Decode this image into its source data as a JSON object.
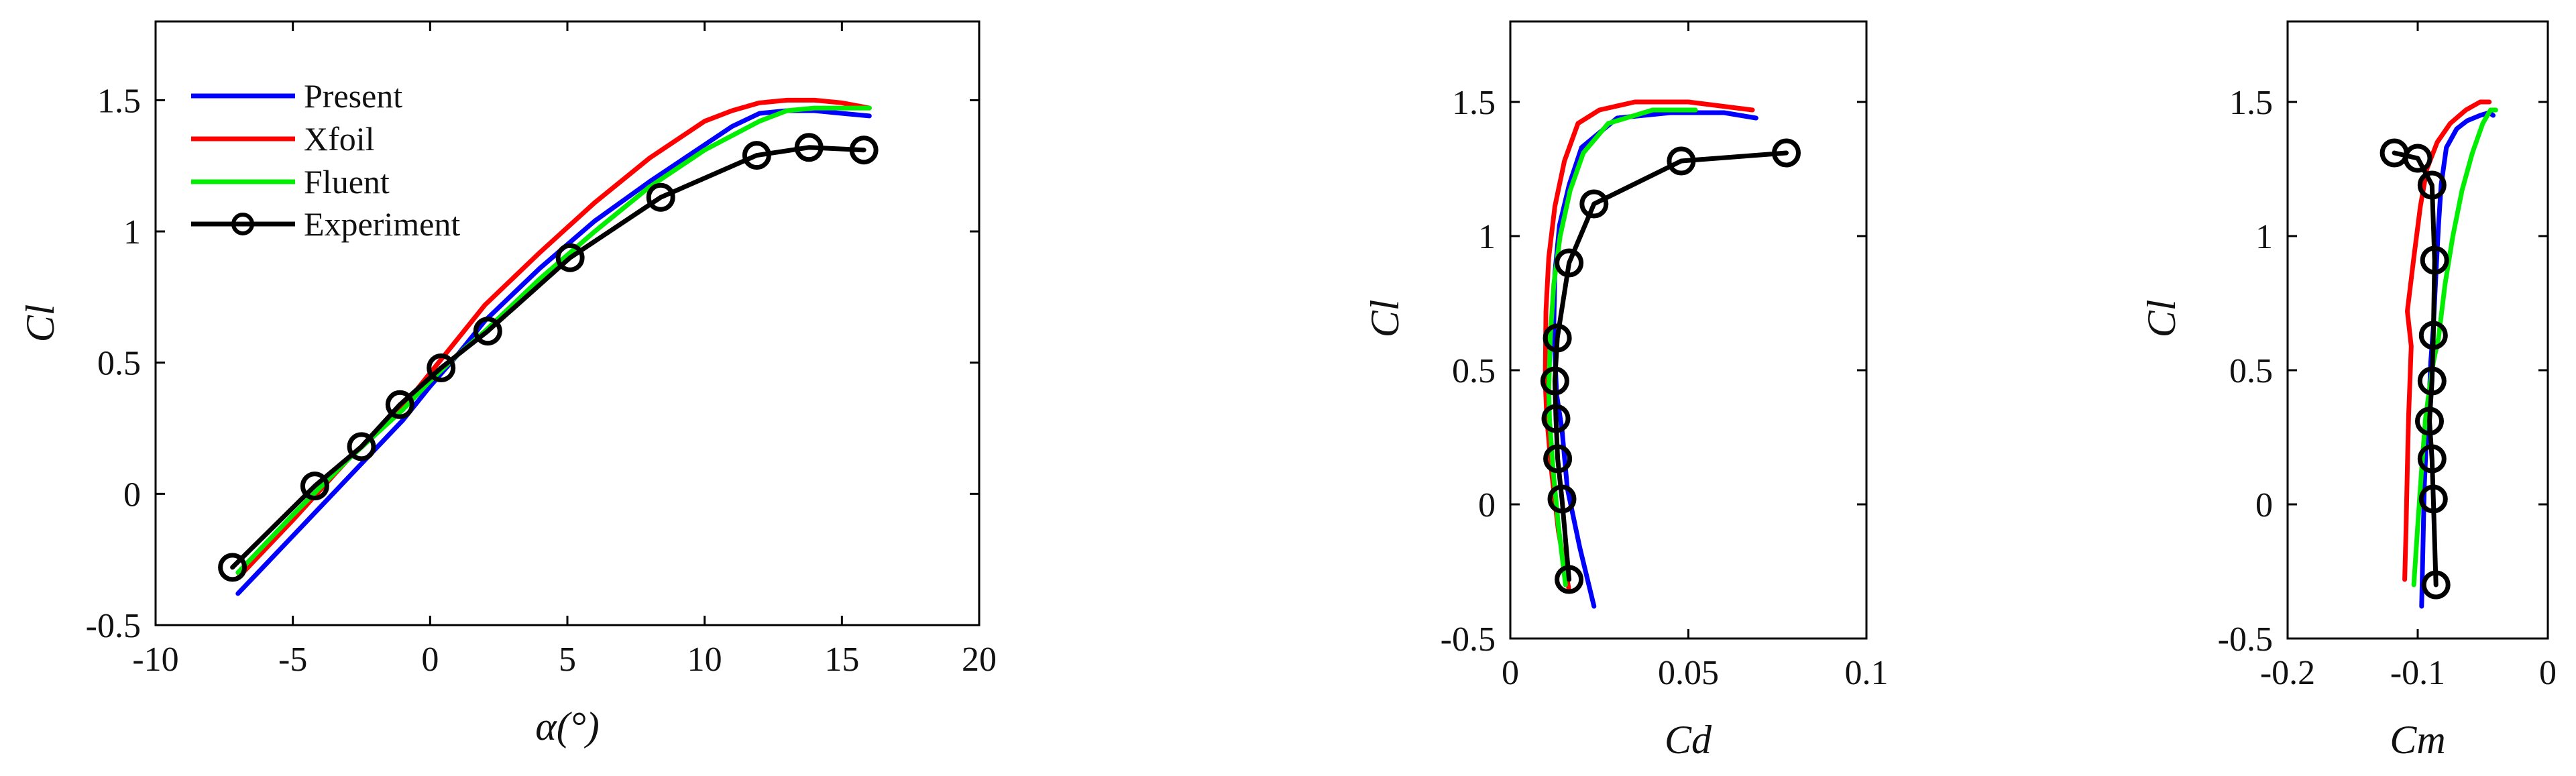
{
  "chart_data": [
    {
      "type": "line",
      "xlabel": "α(°)",
      "ylabel": "Cl",
      "xlim": [
        -10,
        20
      ],
      "ylim": [
        -0.5,
        1.8
      ],
      "xticks": [
        -10,
        -5,
        0,
        5,
        10,
        15,
        20
      ],
      "yticks": [
        -0.5,
        0,
        0.5,
        1,
        1.5
      ],
      "xtick_labels": [
        "-10",
        "-5",
        "0",
        "5",
        "10",
        "15",
        "20"
      ],
      "ytick_labels": [
        "-0.5",
        "0",
        "0.5",
        "1",
        "1.5"
      ],
      "grid": false,
      "legend_position": "top-left",
      "legend": [
        "Present",
        "Xfoil",
        "Fluent",
        "Experiment"
      ],
      "series": [
        {
          "name": "Present",
          "color": "#0000ff",
          "x": [
            -7,
            -5,
            -3,
            -1,
            0,
            1,
            2,
            4,
            6,
            8,
            10,
            11,
            12,
            13,
            14,
            15,
            16
          ],
          "y": [
            -0.38,
            -0.16,
            0.06,
            0.28,
            0.41,
            0.53,
            0.66,
            0.86,
            1.04,
            1.19,
            1.33,
            1.4,
            1.45,
            1.46,
            1.46,
            1.45,
            1.44
          ]
        },
        {
          "name": "Xfoil",
          "color": "#ff0000",
          "x": [
            -7,
            -5,
            -3,
            -1,
            0,
            1,
            2,
            4,
            6,
            8,
            10,
            11,
            12,
            13,
            14,
            15,
            16
          ],
          "y": [
            -0.32,
            -0.1,
            0.13,
            0.33,
            0.46,
            0.59,
            0.72,
            0.92,
            1.11,
            1.28,
            1.42,
            1.46,
            1.49,
            1.5,
            1.5,
            1.49,
            1.47
          ]
        },
        {
          "name": "Fluent",
          "color": "#00ee00",
          "x": [
            -7,
            -5,
            -3,
            -1,
            0,
            1,
            2,
            4,
            6,
            8,
            10,
            12,
            13,
            14,
            15,
            16
          ],
          "y": [
            -0.3,
            -0.08,
            0.13,
            0.32,
            0.43,
            0.53,
            0.62,
            0.82,
            1.0,
            1.17,
            1.31,
            1.42,
            1.46,
            1.47,
            1.47,
            1.47
          ]
        },
        {
          "name": "Experiment",
          "color": "#000000",
          "marker": "circle",
          "x": [
            -7.2,
            -4.2,
            -2.5,
            -1.1,
            0.4,
            2.1,
            5.1,
            8.4,
            11.9,
            13.8,
            15.8
          ],
          "y": [
            -0.28,
            0.03,
            0.18,
            0.34,
            0.48,
            0.62,
            0.9,
            1.13,
            1.29,
            1.32,
            1.31
          ]
        }
      ]
    },
    {
      "type": "line",
      "xlabel": "Cd",
      "ylabel": "Cl",
      "xlim": [
        0,
        0.1
      ],
      "ylim": [
        -0.5,
        1.8
      ],
      "xticks": [
        0,
        0.05,
        0.1
      ],
      "yticks": [
        -0.5,
        0,
        0.5,
        1,
        1.5
      ],
      "xtick_labels": [
        "0",
        "0.05",
        "0.1"
      ],
      "ytick_labels": [
        "-0.5",
        "0",
        "0.5",
        "1",
        "1.5"
      ],
      "grid": false,
      "series": [
        {
          "name": "Present",
          "color": "#0000ff",
          "x": [
            0.0235,
            0.0195,
            0.016,
            0.0145,
            0.013,
            0.0122,
            0.0125,
            0.0138,
            0.0165,
            0.02,
            0.03,
            0.045,
            0.06,
            0.069
          ],
          "y": [
            -0.38,
            -0.16,
            0.06,
            0.28,
            0.41,
            0.66,
            0.86,
            1.04,
            1.19,
            1.33,
            1.44,
            1.46,
            1.46,
            1.44
          ]
        },
        {
          "name": "Xfoil",
          "color": "#ff0000",
          "x": [
            0.0165,
            0.0135,
            0.0115,
            0.0102,
            0.0098,
            0.01,
            0.0108,
            0.0125,
            0.0152,
            0.019,
            0.025,
            0.035,
            0.05,
            0.068
          ],
          "y": [
            -0.32,
            -0.1,
            0.13,
            0.33,
            0.46,
            0.72,
            0.92,
            1.11,
            1.28,
            1.42,
            1.47,
            1.5,
            1.5,
            1.47
          ]
        },
        {
          "name": "Fluent",
          "color": "#00ee00",
          "x": [
            0.0155,
            0.0135,
            0.012,
            0.011,
            0.0108,
            0.0112,
            0.0122,
            0.014,
            0.0168,
            0.0205,
            0.0275,
            0.04,
            0.052
          ],
          "y": [
            -0.3,
            -0.08,
            0.13,
            0.32,
            0.43,
            0.62,
            0.82,
            1.0,
            1.17,
            1.31,
            1.42,
            1.47,
            1.47
          ]
        },
        {
          "name": "Experiment",
          "color": "#000000",
          "marker": "circle",
          "x": [
            0.0165,
            0.0145,
            0.0133,
            0.0128,
            0.0125,
            0.0132,
            0.0165,
            0.0235,
            0.048,
            0.0775
          ],
          "y": [
            -0.28,
            0.02,
            0.17,
            0.32,
            0.46,
            0.62,
            0.9,
            1.12,
            1.28,
            1.31
          ]
        }
      ]
    },
    {
      "type": "line",
      "xlabel": "Cm",
      "ylabel": "Cl",
      "xlim": [
        -0.2,
        0
      ],
      "ylim": [
        -0.5,
        1.8
      ],
      "xticks": [
        -0.2,
        -0.1,
        0
      ],
      "yticks": [
        -0.5,
        0,
        0.5,
        1,
        1.5
      ],
      "xtick_labels": [
        "-0.2",
        "-0.1",
        "0"
      ],
      "ytick_labels": [
        "-0.5",
        "0",
        "0.5",
        "1",
        "1.5"
      ],
      "grid": false,
      "series": [
        {
          "name": "Present",
          "color": "#0000ff",
          "x": [
            -0.097,
            -0.096,
            -0.095,
            -0.093,
            -0.091,
            -0.09,
            -0.088,
            -0.086,
            -0.084,
            -0.082,
            -0.078,
            -0.07,
            -0.062,
            -0.052,
            -0.045,
            -0.042
          ],
          "y": [
            -0.38,
            -0.16,
            0.06,
            0.28,
            0.41,
            0.53,
            0.66,
            0.86,
            1.04,
            1.19,
            1.33,
            1.4,
            1.43,
            1.45,
            1.46,
            1.45
          ]
        },
        {
          "name": "Xfoil",
          "color": "#ff0000",
          "x": [
            -0.11,
            -0.109,
            -0.108,
            -0.107,
            -0.106,
            -0.105,
            -0.108,
            -0.103,
            -0.098,
            -0.093,
            -0.085,
            -0.075,
            -0.063,
            -0.052,
            -0.045
          ],
          "y": [
            -0.28,
            -0.1,
            0.13,
            0.33,
            0.46,
            0.59,
            0.72,
            0.92,
            1.11,
            1.25,
            1.35,
            1.42,
            1.47,
            1.5,
            1.5
          ]
        },
        {
          "name": "Fluent",
          "color": "#00ee00",
          "x": [
            -0.103,
            -0.1,
            -0.097,
            -0.094,
            -0.091,
            -0.088,
            -0.084,
            -0.079,
            -0.073,
            -0.066,
            -0.058,
            -0.05,
            -0.044,
            -0.04
          ],
          "y": [
            -0.3,
            -0.08,
            0.13,
            0.32,
            0.43,
            0.53,
            0.62,
            0.82,
            1.0,
            1.17,
            1.31,
            1.42,
            1.47,
            1.47
          ]
        },
        {
          "name": "Experiment",
          "color": "#000000",
          "marker": "circle",
          "x": [
            -0.086,
            -0.088,
            -0.089,
            -0.091,
            -0.089,
            -0.088,
            -0.087,
            -0.089,
            -0.1,
            -0.118
          ],
          "y": [
            -0.3,
            0.02,
            0.17,
            0.31,
            0.46,
            0.63,
            0.91,
            1.19,
            1.29,
            1.31
          ]
        }
      ]
    }
  ]
}
